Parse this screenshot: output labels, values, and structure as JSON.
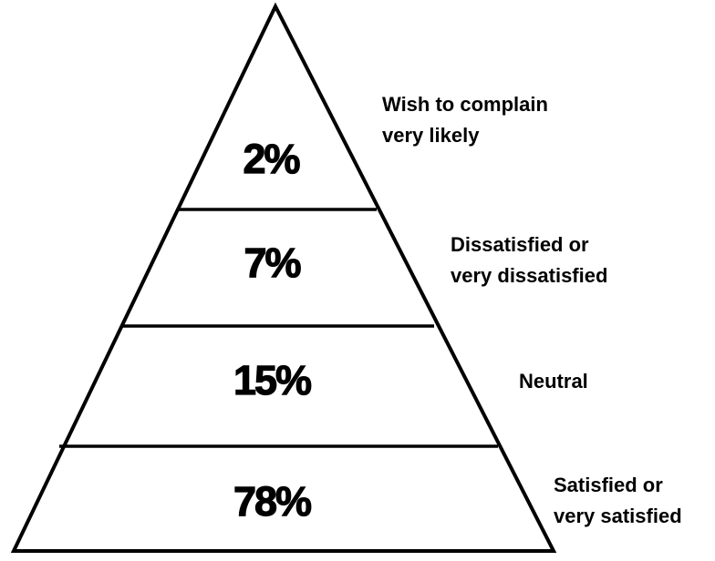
{
  "tiers": [
    {
      "percent": "2%",
      "label_lines": [
        "Wish to complain",
        "very likely"
      ]
    },
    {
      "percent": "7%",
      "label_lines": [
        "Dissatisfied or",
        "very dissatisfied"
      ]
    },
    {
      "percent": "15%",
      "label_lines": [
        "Neutral"
      ]
    },
    {
      "percent": "78%",
      "label_lines": [
        "Satisfied or",
        "very satisfied"
      ]
    }
  ],
  "colors": {
    "outline": "#000000",
    "fill": "#ffffff",
    "text": "#000000"
  }
}
